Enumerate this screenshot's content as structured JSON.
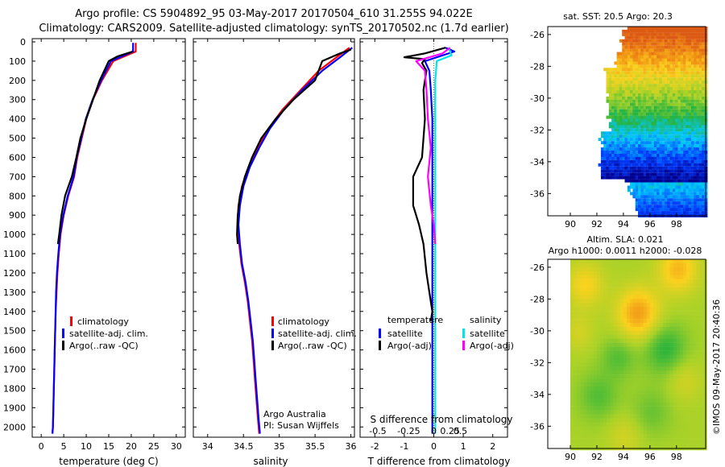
{
  "title_line1": "Argo profile: CS 5904892_95 03-May-2017 20170504_610 31.255S 94.022E",
  "title_line2": "Climatology: CARS2009. Satellite-adjusted climatology: synTS_20170502.nc (1.7d earlier)",
  "depth_ticks": [
    0,
    100,
    200,
    300,
    400,
    500,
    600,
    700,
    800,
    900,
    1000,
    1100,
    1200,
    1300,
    1400,
    1500,
    1600,
    1700,
    1800,
    1900,
    2000
  ],
  "colors": {
    "climatology": "#ff0000",
    "satellite": "#0000ff",
    "argo": "#000000",
    "satellite_s": "#00e5e5",
    "argo_s": "#ff00ff"
  },
  "chart_data": [
    {
      "id": "temperature",
      "type": "line",
      "xlabel": "temperature (deg C)",
      "xlim": [
        -2,
        32
      ],
      "ylim": [
        2070,
        0
      ],
      "xticks": [
        0,
        5,
        10,
        15,
        20,
        25,
        30
      ],
      "legend": [
        "climatology",
        "satellite-adj. clim.",
        "Argo(..raw -QC)"
      ],
      "legend_position": "lower-middle",
      "series": [
        {
          "name": "climatology",
          "role": "climatology",
          "points": [
            [
              21,
              5
            ],
            [
              21,
              50
            ],
            [
              16,
              100
            ],
            [
              13.5,
              200
            ],
            [
              11.5,
              300
            ],
            [
              10,
              400
            ],
            [
              9,
              500
            ],
            [
              8,
              600
            ],
            [
              7.3,
              700
            ],
            [
              6,
              800
            ],
            [
              5,
              900
            ],
            [
              4.3,
              1000
            ],
            [
              3.9,
              1100
            ],
            [
              3.6,
              1200
            ],
            [
              3.4,
              1300
            ],
            [
              3.2,
              1400
            ],
            [
              3.1,
              1500
            ],
            [
              3,
              1600
            ],
            [
              2.9,
              1700
            ],
            [
              2.8,
              1800
            ],
            [
              2.7,
              1900
            ],
            [
              2.6,
              2000
            ],
            [
              2.5,
              2035
            ]
          ]
        },
        {
          "name": "satellite-adj. clim.",
          "role": "satellite",
          "points": [
            [
              20.4,
              5
            ],
            [
              20.4,
              50
            ],
            [
              15.5,
              100
            ],
            [
              13.3,
              200
            ],
            [
              11.4,
              300
            ],
            [
              9.9,
              400
            ],
            [
              8.9,
              500
            ],
            [
              7.9,
              600
            ],
            [
              7.2,
              700
            ],
            [
              5.9,
              800
            ],
            [
              4.9,
              900
            ],
            [
              4.2,
              1000
            ],
            [
              3.8,
              1100
            ],
            [
              3.5,
              1200
            ],
            [
              3.3,
              1300
            ],
            [
              3.2,
              1400
            ],
            [
              3.1,
              1500
            ],
            [
              3,
              1600
            ],
            [
              2.9,
              1700
            ],
            [
              2.8,
              1800
            ],
            [
              2.7,
              1900
            ],
            [
              2.6,
              2000
            ],
            [
              2.5,
              2035
            ]
          ]
        },
        {
          "name": "Argo(..raw -QC)",
          "role": "argo",
          "points": [
            [
              20.3,
              50
            ],
            [
              17,
              75
            ],
            [
              15,
              100
            ],
            [
              13,
              200
            ],
            [
              11.5,
              300
            ],
            [
              10,
              400
            ],
            [
              8.7,
              500
            ],
            [
              7.8,
              600
            ],
            [
              6.8,
              700
            ],
            [
              5.3,
              800
            ],
            [
              4.5,
              900
            ],
            [
              4,
              1000
            ],
            [
              3.7,
              1050
            ]
          ]
        }
      ]
    },
    {
      "id": "salinity",
      "type": "line",
      "xlabel": "salinity",
      "xlim": [
        33.8,
        36.05
      ],
      "ylim": [
        2070,
        0
      ],
      "xticks": [
        34,
        34.5,
        35,
        35.5,
        36
      ],
      "xtick_labels": [
        "34",
        "34.5",
        "35",
        "35.5",
        "36"
      ],
      "legend": [
        "climatology",
        "satellite-adj. clim.",
        "Argo(..raw -QC)"
      ],
      "legend_position": "lower-right",
      "annotation": [
        "Argo Australia",
        "PI: Susan Wijffels"
      ],
      "series": [
        {
          "name": "climatology",
          "role": "climatology",
          "points": [
            [
              35.98,
              30
            ],
            [
              35.8,
              80
            ],
            [
              35.55,
              150
            ],
            [
              35.3,
              250
            ],
            [
              35.05,
              350
            ],
            [
              34.85,
              450
            ],
            [
              34.7,
              550
            ],
            [
              34.57,
              650
            ],
            [
              34.48,
              750
            ],
            [
              34.43,
              850
            ],
            [
              34.42,
              950
            ],
            [
              34.44,
              1050
            ],
            [
              34.47,
              1150
            ],
            [
              34.52,
              1250
            ],
            [
              34.56,
              1350
            ],
            [
              34.59,
              1450
            ],
            [
              34.62,
              1550
            ],
            [
              34.64,
              1650
            ],
            [
              34.66,
              1750
            ],
            [
              34.68,
              1850
            ],
            [
              34.7,
              1950
            ],
            [
              34.72,
              2035
            ]
          ]
        },
        {
          "name": "satellite-adj. clim.",
          "role": "satellite",
          "points": [
            [
              36.02,
              30
            ],
            [
              35.85,
              80
            ],
            [
              35.6,
              150
            ],
            [
              35.32,
              250
            ],
            [
              35.07,
              350
            ],
            [
              34.87,
              450
            ],
            [
              34.72,
              550
            ],
            [
              34.59,
              650
            ],
            [
              34.5,
              750
            ],
            [
              34.45,
              850
            ],
            [
              34.43,
              950
            ],
            [
              34.45,
              1050
            ],
            [
              34.48,
              1150
            ],
            [
              34.53,
              1250
            ],
            [
              34.57,
              1350
            ],
            [
              34.6,
              1450
            ],
            [
              34.63,
              1550
            ],
            [
              34.65,
              1650
            ],
            [
              34.67,
              1750
            ],
            [
              34.69,
              1850
            ],
            [
              34.71,
              1950
            ],
            [
              34.73,
              2035
            ]
          ]
        },
        {
          "name": "Argo(..raw -QC)",
          "role": "argo",
          "points": [
            [
              36.0,
              40
            ],
            [
              35.85,
              60
            ],
            [
              35.6,
              100
            ],
            [
              35.5,
              200
            ],
            [
              35.2,
              300
            ],
            [
              34.95,
              400
            ],
            [
              34.75,
              500
            ],
            [
              34.62,
              600
            ],
            [
              34.52,
              700
            ],
            [
              34.45,
              800
            ],
            [
              34.42,
              900
            ],
            [
              34.41,
              1000
            ],
            [
              34.42,
              1050
            ]
          ]
        }
      ]
    },
    {
      "id": "differences",
      "type": "line",
      "xlabel": "T difference from climatology",
      "top_xlabel": "S difference from climatology",
      "xlim": [
        -2.5,
        2.5
      ],
      "ylim": [
        2070,
        0
      ],
      "xticks": [
        -2,
        -1,
        0,
        1,
        2
      ],
      "top_xticks": [
        -0.5,
        -0.25,
        0,
        0.25,
        0.5
      ],
      "top_xtick_labels": [
        "-0.5",
        "-0.25",
        "0",
        "0.25",
        "0.5"
      ],
      "top_xtick_positions": [
        -1.9,
        -0.85,
        0,
        0.55,
        0.9
      ],
      "legend_temperature_title": "temperature",
      "legend_salinity_title": "salinity",
      "legend_temperature": [
        "satellite",
        "Argo(-adj)"
      ],
      "legend_salinity": [
        "satellite",
        "Argo(-adj)"
      ],
      "series": [
        {
          "name": "satellite",
          "quantity": "temperature",
          "role": "satellite",
          "points": [
            [
              0.4,
              30
            ],
            [
              0.7,
              50
            ],
            [
              -0.3,
              100
            ],
            [
              -0.15,
              150
            ],
            [
              -0.1,
              250
            ],
            [
              -0.05,
              400
            ],
            [
              -0.05,
              600
            ],
            [
              -0.05,
              800
            ],
            [
              -0.05,
              1000
            ],
            [
              -0.05,
              1200
            ],
            [
              -0.05,
              1400
            ],
            [
              -0.05,
              1600
            ],
            [
              -0.05,
              1800
            ],
            [
              -0.05,
              2035
            ]
          ]
        },
        {
          "name": "Argo(-adj)",
          "quantity": "temperature",
          "role": "argo",
          "points": [
            [
              0.4,
              30
            ],
            [
              -0.3,
              60
            ],
            [
              -1.0,
              80
            ],
            [
              -0.3,
              90
            ],
            [
              -0.4,
              110
            ],
            [
              -0.25,
              150
            ],
            [
              -0.35,
              250
            ],
            [
              -0.3,
              400
            ],
            [
              -0.4,
              600
            ],
            [
              -0.7,
              700
            ],
            [
              -0.7,
              850
            ],
            [
              -0.5,
              950
            ],
            [
              -0.35,
              1050
            ],
            [
              -0.25,
              1200
            ],
            [
              -0.15,
              1300
            ],
            [
              -0.05,
              1400
            ],
            [
              -0.1,
              1450
            ]
          ]
        },
        {
          "name": "satellite",
          "quantity": "salinity",
          "role": "satellite_s",
          "points": [
            [
              0.5,
              30
            ],
            [
              0.6,
              70
            ],
            [
              0.1,
              100
            ],
            [
              0.05,
              200
            ],
            [
              0.05,
              400
            ],
            [
              0.05,
              600
            ],
            [
              0.05,
              800
            ],
            [
              0.05,
              1000
            ],
            [
              0.05,
              1200
            ],
            [
              0.05,
              1400
            ],
            [
              0.05,
              1600
            ],
            [
              0.05,
              1800
            ],
            [
              0.05,
              2035
            ]
          ]
        },
        {
          "name": "Argo(-adj)",
          "quantity": "salinity",
          "role": "argo_s",
          "points": [
            [
              0.55,
              30
            ],
            [
              0.3,
              60
            ],
            [
              -0.6,
              100
            ],
            [
              -0.3,
              150
            ],
            [
              -0.25,
              250
            ],
            [
              -0.2,
              400
            ],
            [
              -0.1,
              550
            ],
            [
              -0.2,
              700
            ],
            [
              -0.1,
              850
            ],
            [
              0,
              950
            ],
            [
              0.05,
              1050
            ]
          ]
        }
      ]
    },
    {
      "id": "sst_map",
      "type": "heatmap",
      "title": "sat. SST: 20.5  Argo: 20.3",
      "xticks": [
        90,
        92,
        94,
        96,
        98
      ],
      "yticks": [
        -26,
        -28,
        -30,
        -32,
        -34,
        -36
      ],
      "xlim": [
        88.3,
        100.2
      ],
      "ylim": [
        -37.4,
        -25.5
      ],
      "color_order": "warm north, cold south"
    },
    {
      "id": "sla_map",
      "type": "heatmap",
      "title_line1": "Altim. SLA: 0.021",
      "title_line2": "Argo h1000: 0.0011  h2000: -0.028",
      "xticks": [
        90,
        92,
        94,
        96,
        98
      ],
      "yticks": [
        -26,
        -28,
        -30,
        -32,
        -34,
        -36
      ],
      "xlim": [
        88.3,
        100.2
      ],
      "ylim": [
        -37.4,
        -25.5
      ],
      "color_order": "yellow-green patches, orange near 28-29S 95E"
    }
  ],
  "credit": "©IMOS 09-May-2017 20:40:36"
}
